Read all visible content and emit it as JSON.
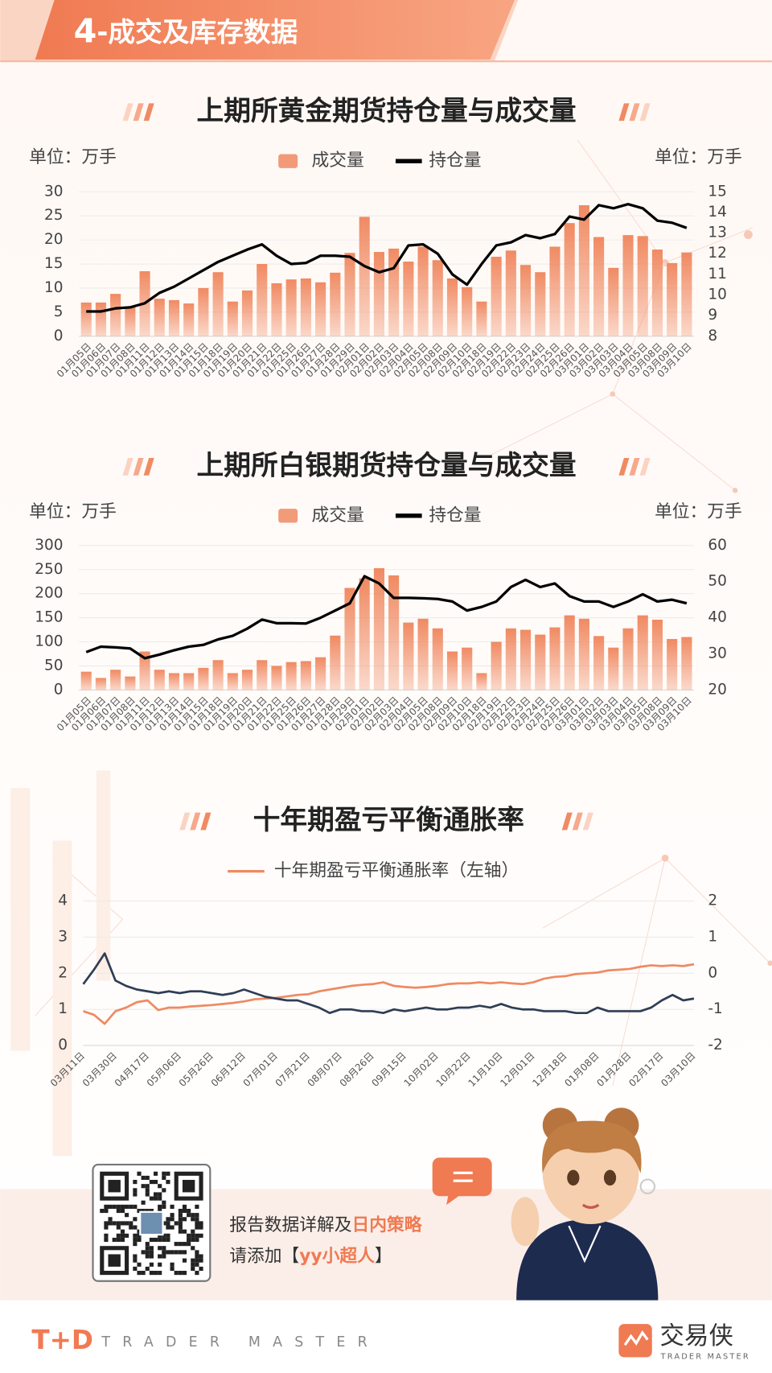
{
  "header": {
    "number": "4",
    "title": "-成交及库存数据"
  },
  "chart_data": [
    {
      "type": "combo",
      "title": "上期所黄金期货持仓量与成交量",
      "y_label": "单位：万手",
      "y2_label": "单位：万手",
      "categories": [
        "01月05日",
        "01月06日",
        "01月07日",
        "01月08日",
        "01月11日",
        "01月12日",
        "01月13日",
        "01月14日",
        "01月15日",
        "01月18日",
        "01月19日",
        "01月20日",
        "01月21日",
        "01月22日",
        "01月25日",
        "01月26日",
        "01月27日",
        "01月28日",
        "01月29日",
        "02月01日",
        "02月02日",
        "02月03日",
        "02月04日",
        "02月05日",
        "02月08日",
        "02月09日",
        "02月10日",
        "02月18日",
        "02月19日",
        "02月22日",
        "02月23日",
        "02月24日",
        "02月25日",
        "02月26日",
        "03月01日",
        "03月02日",
        "03月03日",
        "03月04日",
        "03月05日",
        "03月08日",
        "03月09日",
        "03月10日"
      ],
      "series": [
        {
          "name": "成交量",
          "kind": "bar",
          "axis": "y",
          "color": "#f08a62",
          "values": [
            7,
            7,
            8.8,
            6,
            13.5,
            7.8,
            7.5,
            6.8,
            10,
            13.3,
            7.2,
            9.5,
            15,
            11,
            11.8,
            12,
            11.2,
            13.2,
            17.3,
            24.8,
            17.5,
            18.2,
            15.5,
            18.6,
            15.8,
            12,
            10.2,
            7.2,
            16.5,
            17.8,
            14.8,
            13.3,
            18.6,
            23.5,
            27.2,
            20.6,
            14.2,
            21,
            20.8,
            18,
            15.2,
            17.4
          ]
        },
        {
          "name": "持仓量",
          "kind": "line",
          "axis": "y2",
          "color": "#000000",
          "values": [
            9.2,
            9.2,
            9.35,
            9.4,
            9.6,
            10.1,
            10.4,
            10.8,
            11.2,
            11.6,
            11.9,
            12.2,
            12.45,
            11.9,
            11.5,
            11.55,
            11.9,
            11.9,
            11.85,
            11.4,
            11.1,
            11.3,
            12.4,
            12.45,
            12,
            11,
            10.5,
            11.5,
            12.4,
            12.55,
            12.9,
            12.75,
            12.95,
            13.8,
            13.65,
            14.35,
            14.2,
            14.4,
            14.2,
            13.6,
            13.5,
            13.25
          ]
        }
      ],
      "ylim": [
        0,
        30
      ],
      "yticks": [
        0,
        5,
        10,
        15,
        20,
        25,
        30
      ],
      "y2lim": [
        8,
        15
      ],
      "y2ticks": [
        8,
        9,
        10,
        11,
        12,
        13,
        14,
        15
      ],
      "grid": true
    },
    {
      "type": "combo",
      "title": "上期所白银期货持仓量与成交量",
      "y_label": "单位：万手",
      "y2_label": "单位：万手",
      "categories": [
        "01月05日",
        "01月06日",
        "01月07日",
        "01月08日",
        "01月11日",
        "01月12日",
        "01月13日",
        "01月14日",
        "01月15日",
        "01月18日",
        "01月19日",
        "01月20日",
        "01月21日",
        "01月22日",
        "01月25日",
        "01月26日",
        "01月27日",
        "01月28日",
        "01月29日",
        "02月01日",
        "02月02日",
        "02月03日",
        "02月04日",
        "02月05日",
        "02月08日",
        "02月09日",
        "02月10日",
        "02月18日",
        "02月19日",
        "02月22日",
        "02月23日",
        "02月24日",
        "02月25日",
        "02月26日",
        "03月01日",
        "03月02日",
        "03月03日",
        "03月04日",
        "03月05日",
        "03月08日",
        "03月09日",
        "03月10日"
      ],
      "series": [
        {
          "name": "成交量",
          "kind": "bar",
          "axis": "y",
          "color": "#f08a62",
          "values": [
            38,
            25,
            42,
            28,
            80,
            42,
            35,
            35,
            46,
            62,
            35,
            42,
            62,
            50,
            58,
            60,
            68,
            113,
            212,
            232,
            253,
            238,
            140,
            148,
            128,
            80,
            88,
            35,
            100,
            128,
            125,
            115,
            130,
            155,
            148,
            112,
            88,
            128,
            155,
            146,
            106,
            110
          ]
        },
        {
          "name": "持仓量",
          "kind": "line",
          "axis": "y2",
          "color": "#000000",
          "values": [
            30.5,
            32,
            31.8,
            31.5,
            28.8,
            29.8,
            31,
            32,
            32.5,
            34,
            35,
            37,
            39.5,
            38.5,
            38.5,
            38.4,
            40,
            42,
            44,
            51.5,
            49.5,
            45.5,
            45.5,
            45.4,
            45.2,
            44.5,
            42,
            43,
            44.5,
            48.5,
            50.5,
            48.5,
            49.5,
            46,
            44.5,
            44.5,
            43,
            44.5,
            46.5,
            44.5,
            45,
            44
          ]
        }
      ],
      "ylim": [
        0,
        300
      ],
      "yticks": [
        0,
        50,
        100,
        150,
        200,
        250,
        300
      ],
      "y2lim": [
        20,
        60
      ],
      "y2ticks": [
        20,
        30,
        40,
        50,
        60
      ],
      "grid": true
    },
    {
      "type": "line",
      "title": "十年期盈亏平衡通胀率",
      "categories": [
        "03月11日",
        null,
        null,
        "03月30日",
        null,
        null,
        "04月17日",
        null,
        null,
        "05月06日",
        null,
        null,
        "05月26日",
        null,
        null,
        "06月12日",
        null,
        null,
        "07月01日",
        null,
        null,
        "07月21日",
        null,
        null,
        "08月07日",
        null,
        null,
        "08月26日",
        null,
        null,
        "09月15日",
        null,
        null,
        "10月02日",
        null,
        null,
        "10月22日",
        null,
        null,
        "11月10日",
        null,
        null,
        "12月01日",
        null,
        null,
        "12月18日",
        null,
        null,
        "01月08日",
        null,
        null,
        "01月28日",
        null,
        null,
        "02月17日",
        null,
        null,
        "03月10日"
      ],
      "series": [
        {
          "name": "十年期盈亏平衡通胀率（左轴）",
          "axis": "y",
          "color": "#ee8a62",
          "values": [
            0.95,
            0.85,
            0.6,
            0.95,
            1.05,
            1.2,
            1.25,
            0.98,
            1.05,
            1.05,
            1.08,
            1.1,
            1.12,
            1.15,
            1.18,
            1.22,
            1.28,
            1.3,
            1.32,
            1.36,
            1.4,
            1.42,
            1.5,
            1.55,
            1.6,
            1.65,
            1.68,
            1.7,
            1.75,
            1.65,
            1.62,
            1.6,
            1.62,
            1.65,
            1.7,
            1.72,
            1.72,
            1.75,
            1.72,
            1.75,
            1.72,
            1.7,
            1.75,
            1.85,
            1.9,
            1.92,
            1.98,
            2.0,
            2.02,
            2.08,
            2.1,
            2.12,
            2.18,
            2.22,
            2.2,
            2.22,
            2.2,
            2.25
          ]
        },
        {
          "axis": "y2",
          "color": "#2f3e55",
          "values": [
            -0.3,
            0.1,
            0.55,
            -0.2,
            -0.35,
            -0.45,
            -0.5,
            -0.55,
            -0.5,
            -0.55,
            -0.5,
            -0.5,
            -0.55,
            -0.6,
            -0.55,
            -0.45,
            -0.55,
            -0.65,
            -0.7,
            -0.75,
            -0.75,
            -0.85,
            -0.95,
            -1.1,
            -1.0,
            -1.0,
            -1.05,
            -1.05,
            -1.1,
            -1.0,
            -1.05,
            -1.0,
            -0.95,
            -1.0,
            -1.0,
            -0.95,
            -0.95,
            -0.9,
            -0.95,
            -0.85,
            -0.95,
            -1.0,
            -1.0,
            -1.05,
            -1.05,
            -1.05,
            -1.1,
            -1.1,
            -0.95,
            -1.05,
            -1.05,
            -1.05,
            -1.05,
            -0.95,
            -0.75,
            -0.6,
            -0.75,
            -0.7
          ]
        }
      ],
      "ylim": [
        0,
        4
      ],
      "yticks": [
        0,
        1,
        2,
        3,
        4
      ],
      "y2lim": [
        -2,
        2
      ],
      "y2ticks": [
        -2,
        -1,
        0,
        1,
        2
      ],
      "grid": true
    }
  ],
  "promo": {
    "line1": "报告数据详解及",
    "line1_highlight": "日内策略",
    "line2_open": "请添加【",
    "line2_highlight": "yy小超人",
    "line2_close": "】"
  },
  "footer": {
    "left_logo": "T+D",
    "left_brand": "TRADER MASTER",
    "right_logo": "交易侠",
    "right_brand": "TRADER MASTER"
  }
}
